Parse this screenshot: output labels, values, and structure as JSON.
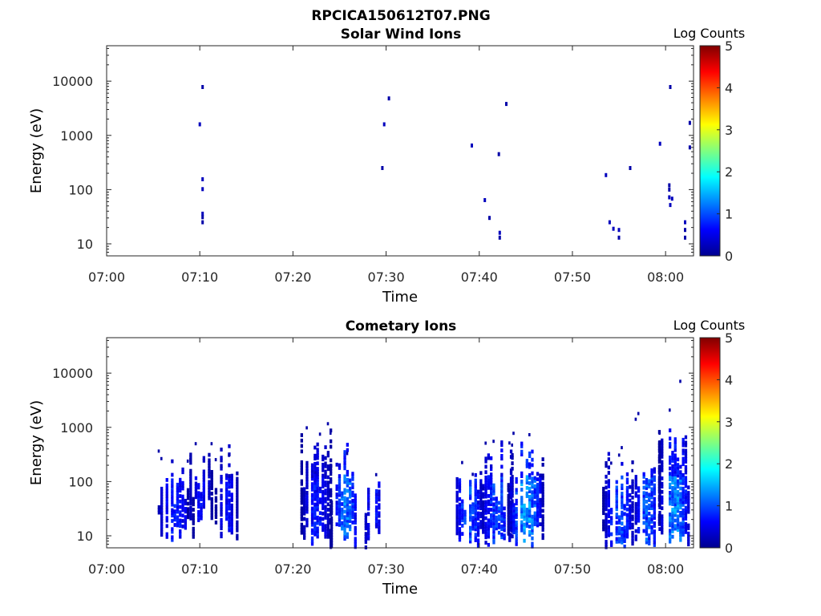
{
  "figure_title": "RPCICA150612T07.PNG",
  "colorbar": {
    "label": "Log Counts",
    "min": 0,
    "max": 5,
    "ticks": [
      "0",
      "1",
      "2",
      "3",
      "4",
      "5"
    ],
    "colormap": "jet"
  },
  "chart_data": [
    {
      "type": "heatmap",
      "title": "Solar Wind Ions",
      "xlabel": "Time",
      "ylabel": "Energy (eV)",
      "xscale": "time",
      "yscale": "log",
      "xlim": [
        "07:00",
        "08:03"
      ],
      "ylim": [
        6,
        45000
      ],
      "xticks": [
        "07:00",
        "07:10",
        "07:20",
        "07:30",
        "07:40",
        "07:50",
        "08:00"
      ],
      "yticks": [
        "10",
        "100",
        "1000",
        "10000"
      ],
      "grid": false,
      "points": [
        {
          "t": "07:10.3",
          "e": 7800,
          "c": 0.2
        },
        {
          "t": "07:10.0",
          "e": 1600,
          "c": 0.3
        },
        {
          "t": "07:10.3",
          "e": 155,
          "c": 0.3
        },
        {
          "t": "07:10.3",
          "e": 102,
          "c": 0.3
        },
        {
          "t": "07:10.3",
          "e": 36,
          "c": 0.3
        },
        {
          "t": "07:10.3",
          "e": 31,
          "c": 0.2
        },
        {
          "t": "07:10.3",
          "e": 25,
          "c": 0.2
        },
        {
          "t": "07:30.3",
          "e": 4800,
          "c": 0.2
        },
        {
          "t": "07:29.8",
          "e": 1600,
          "c": 0.3
        },
        {
          "t": "07:29.6",
          "e": 250,
          "c": 0.2
        },
        {
          "t": "07:39.2",
          "e": 650,
          "c": 0.3
        },
        {
          "t": "07:40.6",
          "e": 64,
          "c": 0.3
        },
        {
          "t": "07:41.1",
          "e": 30,
          "c": 0.2
        },
        {
          "t": "07:42.1",
          "e": 450,
          "c": 0.2
        },
        {
          "t": "07:42.2",
          "e": 16,
          "c": 0.3
        },
        {
          "t": "07:42.2",
          "e": 13,
          "c": 0.2
        },
        {
          "t": "07:42.9",
          "e": 3800,
          "c": 0.2
        },
        {
          "t": "07:53.6",
          "e": 185,
          "c": 0.3
        },
        {
          "t": "07:54.0",
          "e": 25,
          "c": 0.3
        },
        {
          "t": "07:54.4",
          "e": 19,
          "c": 0.3
        },
        {
          "t": "07:55.0",
          "e": 18,
          "c": 0.3
        },
        {
          "t": "07:55.0",
          "e": 13,
          "c": 0.2
        },
        {
          "t": "07:56.2",
          "e": 250,
          "c": 0.2
        },
        {
          "t": "07:59.4",
          "e": 700,
          "c": 0.3
        },
        {
          "t": "08:00.5",
          "e": 7800,
          "c": 0.2
        },
        {
          "t": "08:00.4",
          "e": 120,
          "c": 0.2
        },
        {
          "t": "08:00.4",
          "e": 100,
          "c": 0.2
        },
        {
          "t": "08:00.4",
          "e": 72,
          "c": 0.3
        },
        {
          "t": "08:00.7",
          "e": 68,
          "c": 0.3
        },
        {
          "t": "08:00.5",
          "e": 52,
          "c": 0.3
        },
        {
          "t": "08:02.1",
          "e": 25,
          "c": 0.3
        },
        {
          "t": "08:02.1",
          "e": 18,
          "c": 0.2
        },
        {
          "t": "08:02.1",
          "e": 13,
          "c": 0.2
        },
        {
          "t": "08:02.6",
          "e": 1700,
          "c": 0.2
        },
        {
          "t": "08:02.6",
          "e": 600,
          "c": 0.2
        }
      ]
    },
    {
      "type": "heatmap",
      "title": "Cometary Ions",
      "xlabel": "Time",
      "ylabel": "Energy (eV)",
      "xscale": "time",
      "yscale": "log",
      "xlim": [
        "07:00",
        "08:03"
      ],
      "ylim": [
        6,
        45000
      ],
      "xticks": [
        "07:00",
        "07:10",
        "07:20",
        "07:30",
        "07:40",
        "07:50",
        "08:00"
      ],
      "yticks": [
        "10",
        "100",
        "1000",
        "10000"
      ],
      "grid": false,
      "bursts": [
        {
          "t0": "07:05.2",
          "t1": "07:09.2",
          "emin": 8,
          "emax": 470,
          "cmax": 0.9
        },
        {
          "t0": "07:08.6",
          "t1": "07:11.2",
          "emin": 17,
          "emax": 550,
          "cmax": 0.8
        },
        {
          "t0": "07:11.6",
          "t1": "07:14.0",
          "emin": 8,
          "emax": 600,
          "cmax": 0.8
        },
        {
          "t0": "07:20.8",
          "t1": "07:24.0",
          "emin": 6,
          "emax": 1500,
          "cmax": 0.9
        },
        {
          "t0": "07:24.0",
          "t1": "07:27.0",
          "emin": 6,
          "emax": 650,
          "cmax": 1.5
        },
        {
          "t0": "07:27.4",
          "t1": "07:29.6",
          "emin": 6,
          "emax": 270,
          "cmax": 0.9
        },
        {
          "t0": "07:37.2",
          "t1": "07:40.3",
          "emin": 6,
          "emax": 500,
          "cmax": 1.3
        },
        {
          "t0": "07:40.0",
          "t1": "07:43.6",
          "emin": 6,
          "emax": 650,
          "cmax": 1.2
        },
        {
          "t0": "07:43.0",
          "t1": "07:46.8",
          "emin": 6,
          "emax": 800,
          "cmax": 1.7
        },
        {
          "t0": "07:53.2",
          "t1": "07:56.6",
          "emin": 6,
          "emax": 500,
          "cmax": 1.2
        },
        {
          "t0": "07:56.4",
          "t1": "07:59.4",
          "emin": 6,
          "emax": 3600,
          "cmax": 1.3
        },
        {
          "t0": "07:59.2",
          "t1": "08:02.6",
          "emin": 6,
          "emax": 7800,
          "cmax": 1.6
        }
      ]
    }
  ]
}
